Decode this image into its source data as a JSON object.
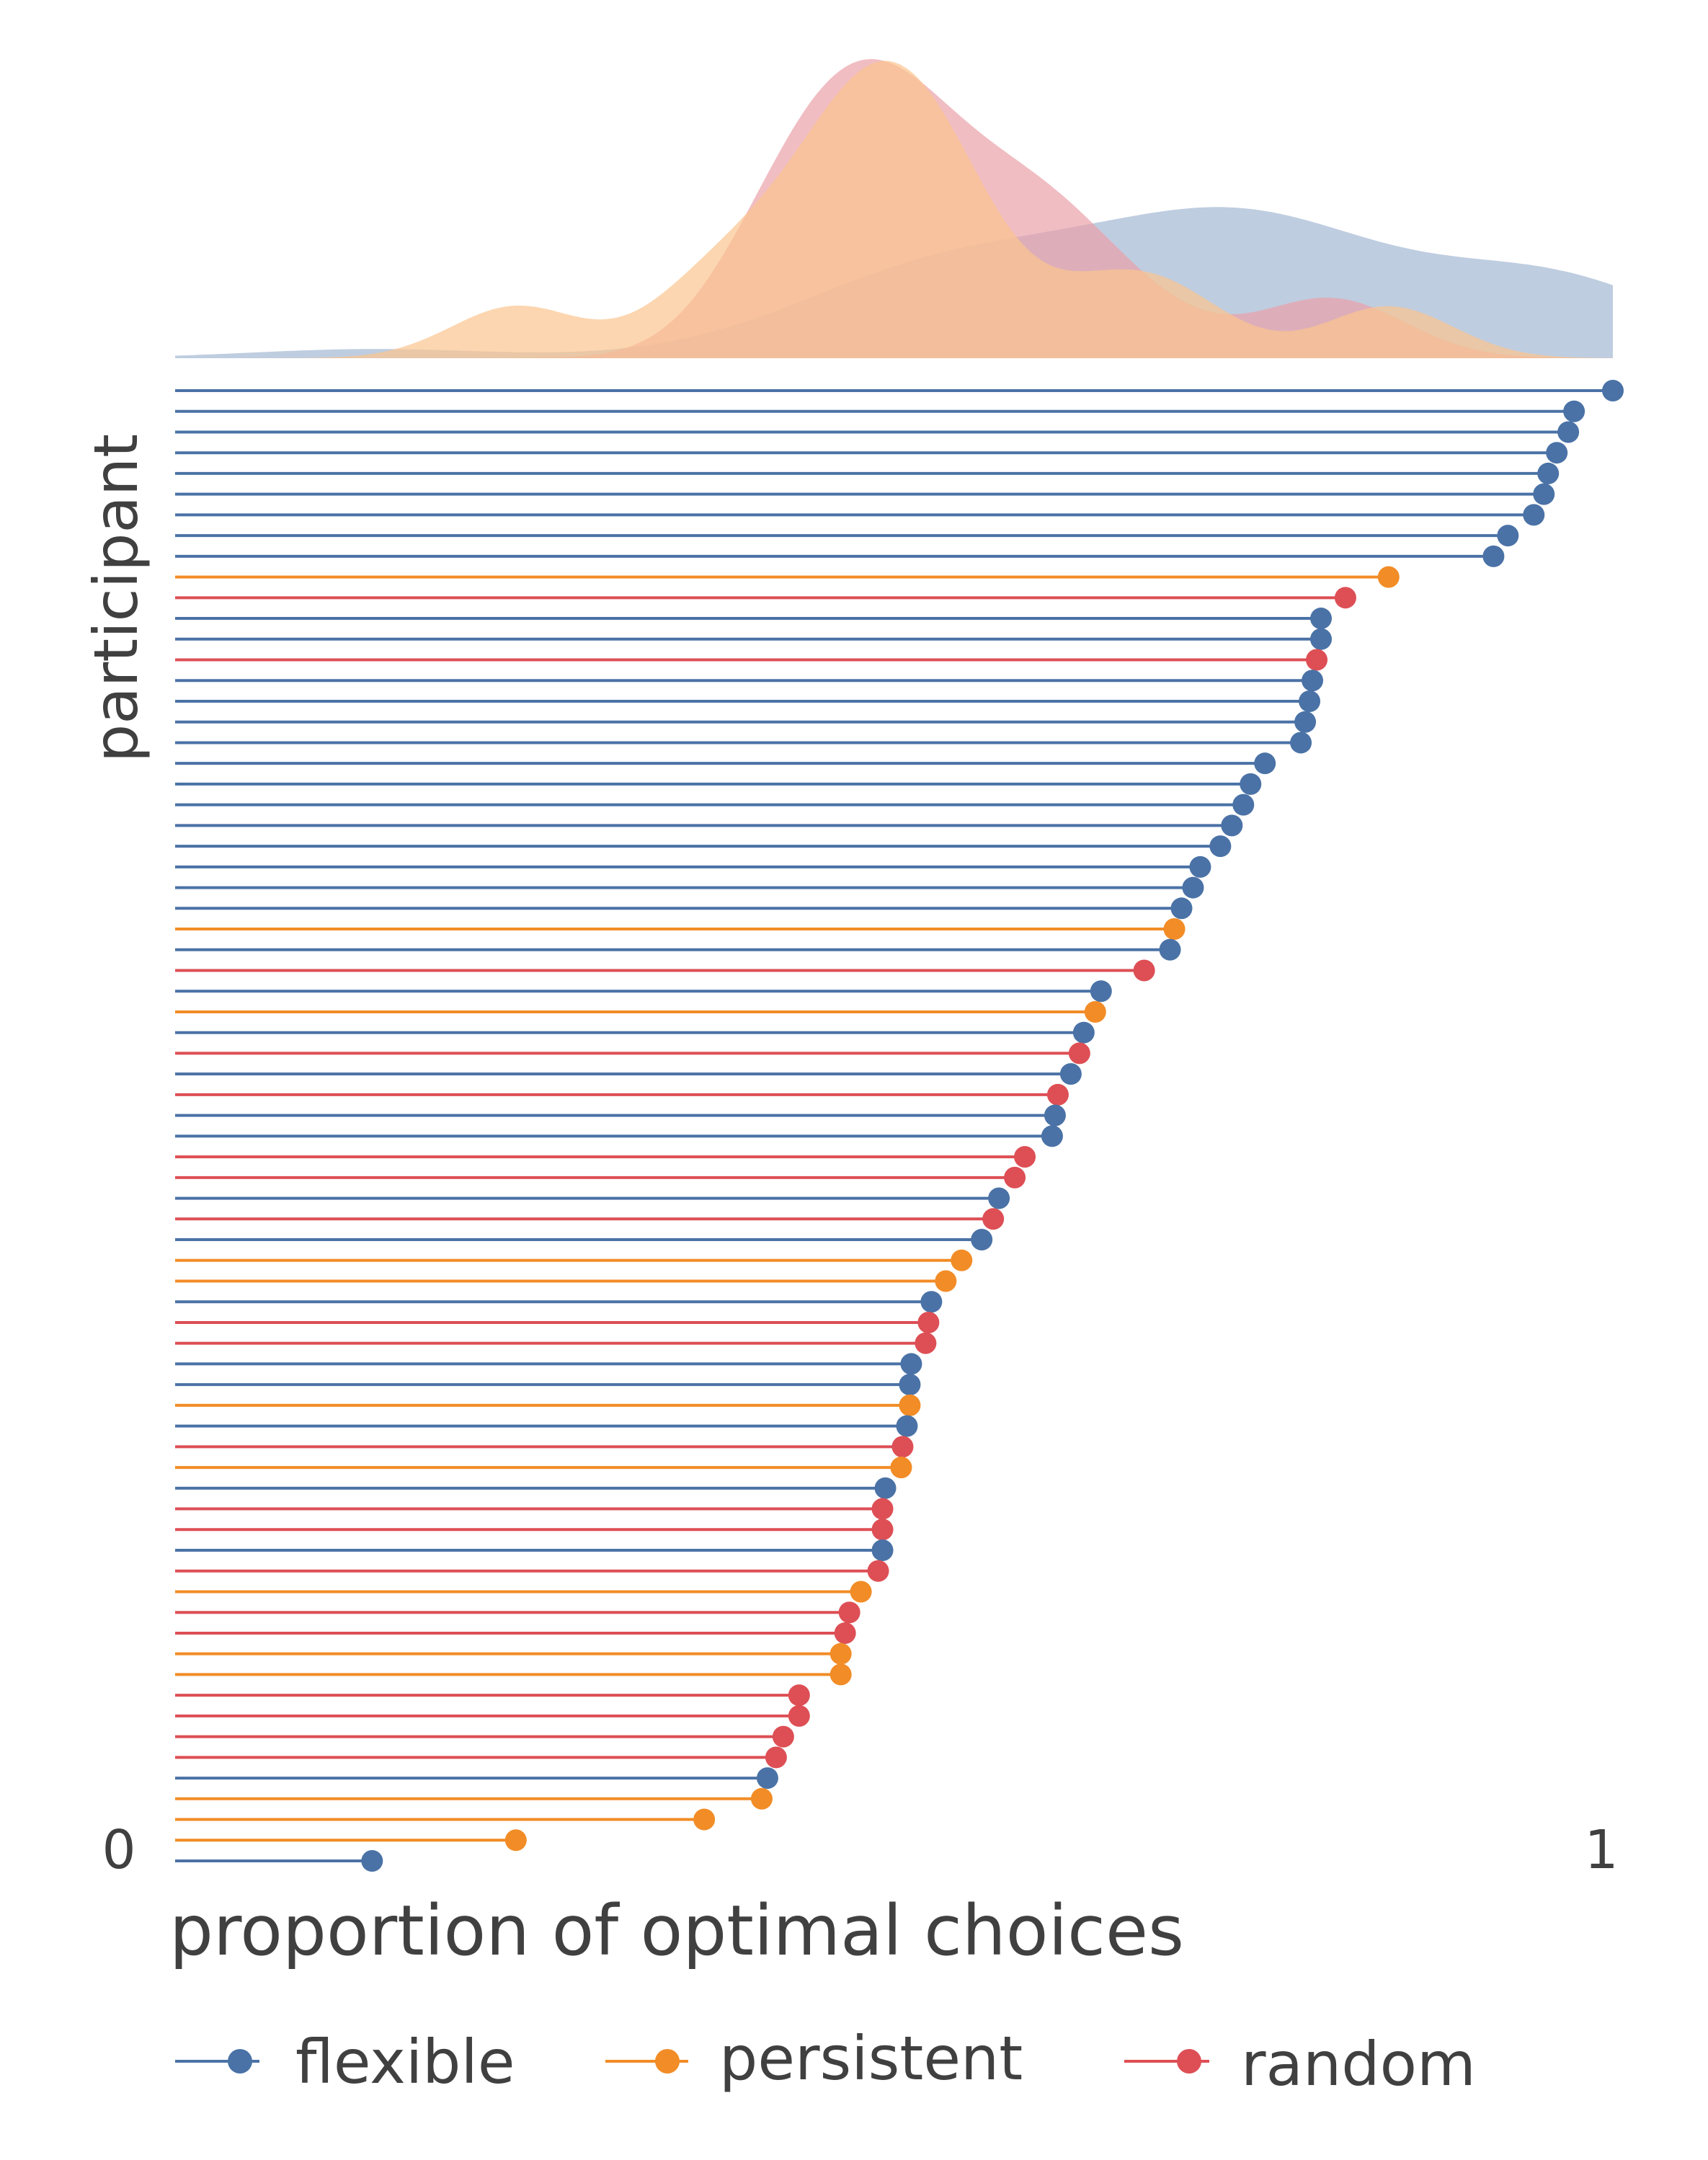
{
  "chart_data": {
    "type": "lollipop",
    "title": "",
    "xlabel": "proportion of optimal choices",
    "ylabel": "participant",
    "xlim": [
      0,
      1
    ],
    "x_ticks": [
      "0",
      "1"
    ],
    "grid": false,
    "legend_position": "bottom",
    "legend": [
      {
        "key": "flexible",
        "label": "flexible"
      },
      {
        "key": "persistent",
        "label": "persistent"
      },
      {
        "key": "random",
        "label": "random"
      }
    ],
    "colors": {
      "flexible": "#4a72a6",
      "persistent": "#f28c26",
      "random": "#dd4f55"
    },
    "density_colors": {
      "flexible": "#a9bcd6",
      "persistent": "#fbc58f",
      "random": "#eaa1aa",
      "overlap": "#e08a6a"
    },
    "participants": [
      {
        "group": "flexible",
        "value": 1.0
      },
      {
        "group": "flexible",
        "value": 0.973
      },
      {
        "group": "flexible",
        "value": 0.969
      },
      {
        "group": "flexible",
        "value": 0.961
      },
      {
        "group": "flexible",
        "value": 0.955
      },
      {
        "group": "flexible",
        "value": 0.952
      },
      {
        "group": "flexible",
        "value": 0.945
      },
      {
        "group": "flexible",
        "value": 0.927
      },
      {
        "group": "flexible",
        "value": 0.917
      },
      {
        "group": "persistent",
        "value": 0.844
      },
      {
        "group": "random",
        "value": 0.814
      },
      {
        "group": "flexible",
        "value": 0.797
      },
      {
        "group": "flexible",
        "value": 0.797
      },
      {
        "group": "random",
        "value": 0.794
      },
      {
        "group": "flexible",
        "value": 0.791
      },
      {
        "group": "flexible",
        "value": 0.789
      },
      {
        "group": "flexible",
        "value": 0.786
      },
      {
        "group": "flexible",
        "value": 0.783
      },
      {
        "group": "flexible",
        "value": 0.758
      },
      {
        "group": "flexible",
        "value": 0.748
      },
      {
        "group": "flexible",
        "value": 0.743
      },
      {
        "group": "flexible",
        "value": 0.735
      },
      {
        "group": "flexible",
        "value": 0.727
      },
      {
        "group": "flexible",
        "value": 0.713
      },
      {
        "group": "flexible",
        "value": 0.708
      },
      {
        "group": "flexible",
        "value": 0.7
      },
      {
        "group": "persistent",
        "value": 0.695
      },
      {
        "group": "flexible",
        "value": 0.692
      },
      {
        "group": "random",
        "value": 0.674
      },
      {
        "group": "flexible",
        "value": 0.644
      },
      {
        "group": "persistent",
        "value": 0.64
      },
      {
        "group": "flexible",
        "value": 0.632
      },
      {
        "group": "random",
        "value": 0.629
      },
      {
        "group": "flexible",
        "value": 0.623
      },
      {
        "group": "random",
        "value": 0.614
      },
      {
        "group": "flexible",
        "value": 0.612
      },
      {
        "group": "flexible",
        "value": 0.61
      },
      {
        "group": "random",
        "value": 0.591
      },
      {
        "group": "random",
        "value": 0.584
      },
      {
        "group": "flexible",
        "value": 0.573
      },
      {
        "group": "random",
        "value": 0.569
      },
      {
        "group": "flexible",
        "value": 0.561
      },
      {
        "group": "persistent",
        "value": 0.547
      },
      {
        "group": "persistent",
        "value": 0.536
      },
      {
        "group": "flexible",
        "value": 0.526
      },
      {
        "group": "random",
        "value": 0.524
      },
      {
        "group": "random",
        "value": 0.522
      },
      {
        "group": "flexible",
        "value": 0.512
      },
      {
        "group": "flexible",
        "value": 0.511
      },
      {
        "group": "persistent",
        "value": 0.511
      },
      {
        "group": "flexible",
        "value": 0.509
      },
      {
        "group": "random",
        "value": 0.506
      },
      {
        "group": "persistent",
        "value": 0.505
      },
      {
        "group": "flexible",
        "value": 0.494
      },
      {
        "group": "random",
        "value": 0.492
      },
      {
        "group": "random",
        "value": 0.492
      },
      {
        "group": "flexible",
        "value": 0.492
      },
      {
        "group": "random",
        "value": 0.489
      },
      {
        "group": "persistent",
        "value": 0.477
      },
      {
        "group": "random",
        "value": 0.469
      },
      {
        "group": "random",
        "value": 0.466
      },
      {
        "group": "persistent",
        "value": 0.463
      },
      {
        "group": "persistent",
        "value": 0.463
      },
      {
        "group": "random",
        "value": 0.434
      },
      {
        "group": "random",
        "value": 0.434
      },
      {
        "group": "random",
        "value": 0.423
      },
      {
        "group": "random",
        "value": 0.418
      },
      {
        "group": "flexible",
        "value": 0.412
      },
      {
        "group": "persistent",
        "value": 0.408
      },
      {
        "group": "persistent",
        "value": 0.368
      },
      {
        "group": "persistent",
        "value": 0.237
      },
      {
        "group": "flexible",
        "value": 0.137
      }
    ]
  }
}
